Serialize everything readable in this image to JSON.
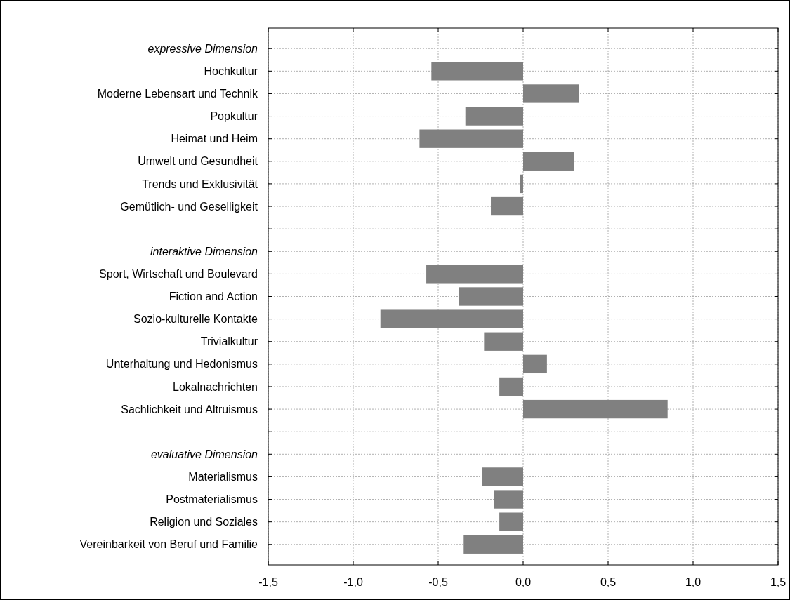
{
  "chart_data": {
    "type": "bar",
    "orientation": "horizontal",
    "categories": [
      "expressive Dimension",
      "Hochkultur",
      "Moderne Lebensart und Technik",
      "Popkultur",
      "Heimat und Heim",
      "Umwelt und Gesundheit",
      "Trends und Exklusivität",
      "Gemütlich- und Geselligkeit",
      null,
      "interaktive Dimension",
      "Sport, Wirtschaft und Boulevard",
      "Fiction and Action",
      "Sozio-kulturelle Kontakte",
      "Trivialkultur",
      "Unterhaltung und Hedonismus",
      "Lokalnachrichten",
      "Sachlichkeit und Altruismus",
      null,
      "evaluative Dimension",
      "Materialismus",
      "Postmaterialismus",
      "Religion und Soziales",
      "Vereinbarkeit von Beruf und Familie"
    ],
    "values": [
      null,
      -0.54,
      0.33,
      -0.34,
      -0.61,
      0.3,
      -0.02,
      -0.19,
      null,
      null,
      -0.57,
      -0.38,
      -0.84,
      -0.23,
      0.14,
      -0.14,
      0.85,
      null,
      null,
      -0.24,
      -0.17,
      -0.14,
      -0.35
    ],
    "color": "#808080",
    "xlim": [
      -1.5,
      1.5
    ],
    "xticks": [
      {
        "value": -1.5,
        "label": "-1,5"
      },
      {
        "value": -1,
        "label": "-1,0"
      },
      {
        "value": -0.5,
        "label": "-0,5"
      },
      {
        "value": 0,
        "label": "0,0"
      },
      {
        "value": 0.5,
        "label": "0,5"
      },
      {
        "value": 1,
        "label": "1,0"
      },
      {
        "value": 1.5,
        "label": "1,5"
      }
    ],
    "grid": true
  }
}
